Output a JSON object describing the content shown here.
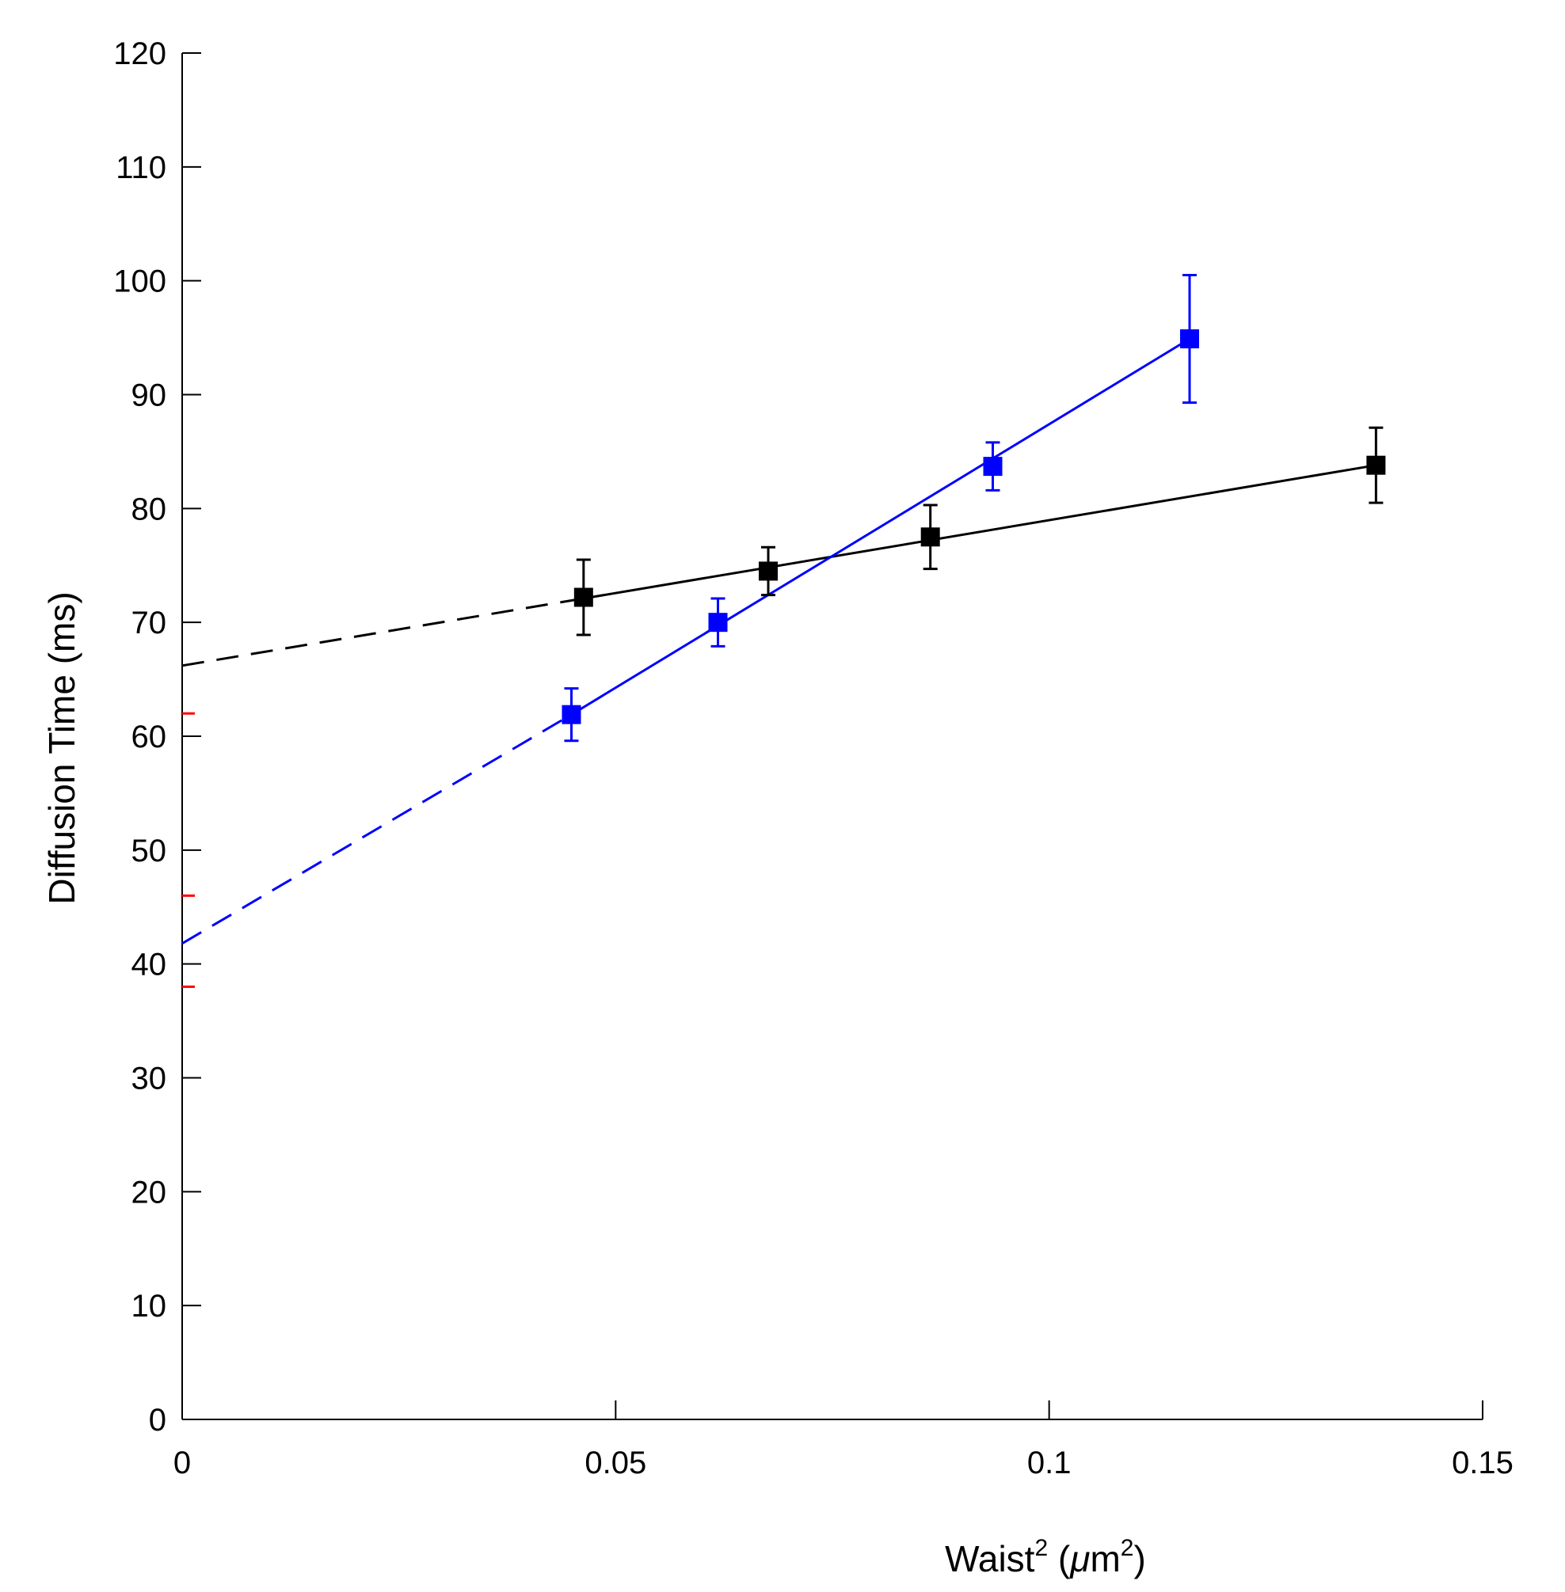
{
  "chart_data": {
    "type": "scatter",
    "title": "",
    "xlabel": {
      "base": "Waist",
      "sup": "2",
      "unit_open": " (",
      "mu": "μ",
      "unit_m": "m",
      "unit_sup": "2",
      "unit_close": ")"
    },
    "ylabel": "Diffusion Time (ms)",
    "xlim": [
      0,
      0.15
    ],
    "ylim": [
      0,
      120
    ],
    "x_ticks": [
      0,
      0.05,
      0.1,
      0.15
    ],
    "x_tick_labels": [
      "0",
      "0.05",
      "0.1",
      "0.15"
    ],
    "y_ticks": [
      0,
      10,
      20,
      30,
      40,
      50,
      60,
      70,
      80,
      90,
      100,
      110,
      120
    ],
    "y_tick_labels": [
      "0",
      "10",
      "20",
      "30",
      "40",
      "50",
      "60",
      "70",
      "80",
      "90",
      "100",
      "110",
      "120"
    ],
    "grid": false,
    "series": [
      {
        "name": "black",
        "color": "#000000",
        "points": [
          {
            "x": 0.0463,
            "y": 72.2,
            "err": 3.3
          },
          {
            "x": 0.0676,
            "y": 74.5,
            "err": 2.1
          },
          {
            "x": 0.0863,
            "y": 77.5,
            "err": 2.8
          },
          {
            "x": 0.1377,
            "y": 83.8,
            "err": 3.3
          }
        ],
        "fit_solid": [
          [
            0.0463,
            72.1
          ],
          [
            0.1377,
            83.8
          ]
        ],
        "fit_dashed": [
          [
            0.0,
            66.2
          ],
          [
            0.0463,
            72.1
          ]
        ]
      },
      {
        "name": "blue",
        "color": "#0000ff",
        "points": [
          {
            "x": 0.0449,
            "y": 61.9,
            "err": 2.3
          },
          {
            "x": 0.0618,
            "y": 70.0,
            "err": 2.1
          },
          {
            "x": 0.0935,
            "y": 83.7,
            "err": 2.1
          },
          {
            "x": 0.1162,
            "y": 94.9,
            "err": 5.6
          }
        ],
        "fit_solid": [
          [
            0.0449,
            61.9
          ],
          [
            0.1162,
            94.9
          ]
        ],
        "fit_dashed": [
          [
            0.0,
            41.8
          ],
          [
            0.0449,
            61.9
          ]
        ]
      }
    ],
    "intercept_marks": {
      "color": "#ff0000",
      "values": [
        62.0,
        46.0,
        38.0
      ]
    }
  }
}
